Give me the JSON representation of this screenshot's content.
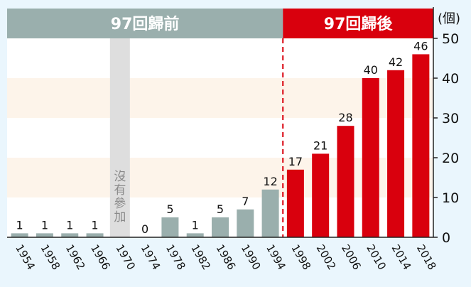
{
  "chart_data": {
    "type": "bar",
    "unit_label": "(個)",
    "period_labels": {
      "before": "97回歸前",
      "after": "97回歸後"
    },
    "categories": [
      "1954",
      "1958",
      "1962",
      "1966",
      "1970",
      "1974",
      "1978",
      "1982",
      "1986",
      "1990",
      "1994",
      "1998",
      "2002",
      "2006",
      "2010",
      "2014",
      "2018"
    ],
    "values": [
      1,
      1,
      1,
      1,
      null,
      0,
      5,
      1,
      5,
      7,
      12,
      17,
      21,
      28,
      40,
      42,
      46
    ],
    "annotation": {
      "category": "1970",
      "text": "沒有參加"
    },
    "split_after_category": "1994",
    "ylim": [
      0,
      50
    ],
    "yticks": [
      0,
      10,
      20,
      30,
      40,
      50
    ],
    "grid": false,
    "colors": {
      "before": "#9aafad",
      "after": "#d9000d",
      "header_before": "#9aafad",
      "header_after": "#d9000d",
      "band": "#fdf4ea",
      "plot_bg": "#ffffff",
      "page_bg": "#eaf6fd",
      "annotation_bar": "#dedede",
      "annotation_text": "#8a8a8a",
      "split_line": "#d9000d"
    }
  }
}
